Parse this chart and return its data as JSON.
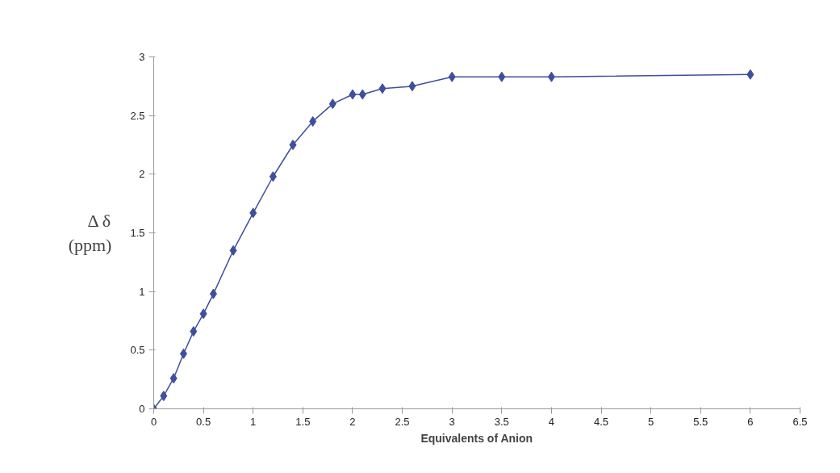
{
  "chart_data": {
    "type": "line",
    "xlabel": "Equivalents of Anion",
    "ylabel": "Δ δ\n(ppm)",
    "x": [
      0,
      0.1,
      0.2,
      0.3,
      0.4,
      0.5,
      0.6,
      0.8,
      1.0,
      1.2,
      1.4,
      1.6,
      1.8,
      2.0,
      2.1,
      2.3,
      2.6,
      3.0,
      3.5,
      4.0,
      6.0
    ],
    "series": [
      {
        "color": "#3f4f9a",
        "values": [
          0,
          0.11,
          0.26,
          0.47,
          0.66,
          0.81,
          0.98,
          1.35,
          1.67,
          1.98,
          2.25,
          2.45,
          2.6,
          2.68,
          2.68,
          2.73,
          2.75,
          2.83,
          2.83,
          2.83,
          2.85
        ]
      }
    ],
    "xlim": [
      0,
      6.5
    ],
    "xticks": [
      0,
      0.5,
      1,
      1.5,
      2,
      2.5,
      3,
      3.5,
      4,
      4.5,
      5,
      5.5,
      6,
      6.5
    ],
    "ylim": [
      0,
      3
    ],
    "yticks": [
      0,
      0.5,
      1,
      1.5,
      2,
      2.5,
      3
    ],
    "grid": false,
    "marker": "diamond",
    "line_style": "solid"
  }
}
